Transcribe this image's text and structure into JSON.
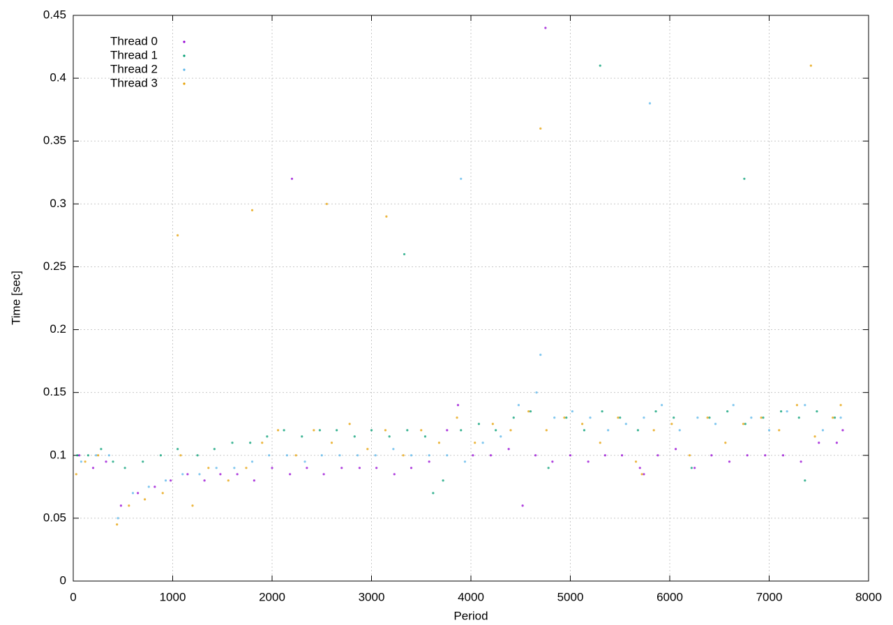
{
  "chart_data": {
    "type": "scatter",
    "x_label": "Period",
    "y_label": "Time [sec]",
    "xlim": [
      0,
      8000
    ],
    "ylim": [
      0,
      0.45
    ],
    "xticks": [
      0,
      1000,
      2000,
      3000,
      4000,
      5000,
      6000,
      7000,
      8000
    ],
    "yticks": [
      0,
      0.05,
      0.1,
      0.15,
      0.2,
      0.25,
      0.3,
      0.35,
      0.4,
      0.45
    ],
    "grid": true,
    "legend": "top-left",
    "series": [
      {
        "name": "Thread 0",
        "color": "#9400d3",
        "x": [
          60,
          200,
          330,
          480,
          650,
          820,
          980,
          1150,
          1320,
          1480,
          1650,
          1820,
          2000,
          2180,
          2350,
          2520,
          2700,
          2880,
          3050,
          3230,
          3400,
          3580,
          3760,
          3870,
          4020,
          4200,
          4380,
          4520,
          4650,
          4820,
          5000,
          5180,
          5350,
          5520,
          5700,
          5740,
          5880,
          6060,
          6250,
          6420,
          6600,
          6780,
          6960,
          7140,
          7320,
          7500,
          7680,
          7740,
          2200,
          4750
        ],
        "values": [
          0.1,
          0.09,
          0.095,
          0.06,
          0.07,
          0.075,
          0.08,
          0.085,
          0.08,
          0.085,
          0.085,
          0.08,
          0.09,
          0.085,
          0.09,
          0.085,
          0.09,
          0.09,
          0.09,
          0.085,
          0.09,
          0.095,
          0.12,
          0.14,
          0.1,
          0.1,
          0.105,
          0.06,
          0.1,
          0.095,
          0.1,
          0.095,
          0.1,
          0.1,
          0.09,
          0.085,
          0.1,
          0.105,
          0.09,
          0.1,
          0.095,
          0.1,
          0.1,
          0.1,
          0.095,
          0.11,
          0.11,
          0.12,
          0.32,
          0.44
        ]
      },
      {
        "name": "Thread 1",
        "color": "#009e73",
        "x": [
          40,
          150,
          280,
          400,
          520,
          700,
          880,
          1050,
          1250,
          1420,
          1600,
          1780,
          1950,
          2120,
          2300,
          2480,
          2650,
          2830,
          3000,
          3180,
          3360,
          3540,
          3620,
          3720,
          3900,
          4080,
          4250,
          4430,
          4600,
          4780,
          4960,
          5140,
          5320,
          5500,
          5680,
          5860,
          6040,
          6220,
          6400,
          6580,
          6760,
          6940,
          7120,
          7300,
          7360,
          7480,
          7660,
          3330,
          5300,
          6750
        ],
        "values": [
          0.1,
          0.1,
          0.105,
          0.095,
          0.09,
          0.095,
          0.1,
          0.105,
          0.1,
          0.105,
          0.11,
          0.11,
          0.115,
          0.12,
          0.115,
          0.12,
          0.12,
          0.115,
          0.12,
          0.115,
          0.12,
          0.115,
          0.07,
          0.08,
          0.12,
          0.125,
          0.12,
          0.13,
          0.135,
          0.09,
          0.13,
          0.12,
          0.135,
          0.13,
          0.12,
          0.135,
          0.13,
          0.09,
          0.13,
          0.135,
          0.125,
          0.13,
          0.135,
          0.13,
          0.08,
          0.135,
          0.13,
          0.26,
          0.41,
          0.32
        ]
      },
      {
        "name": "Thread 2",
        "color": "#56b4e9",
        "x": [
          80,
          230,
          360,
          450,
          600,
          760,
          930,
          1100,
          1270,
          1440,
          1620,
          1800,
          1970,
          2150,
          2330,
          2500,
          2680,
          2860,
          3040,
          3220,
          3400,
          3580,
          3760,
          3940,
          4120,
          4300,
          4480,
          4660,
          4840,
          5020,
          5200,
          5380,
          5560,
          5740,
          5920,
          6100,
          6280,
          6460,
          6640,
          6820,
          7000,
          7180,
          7360,
          7540,
          7720,
          4700,
          3900,
          5800
        ],
        "values": [
          0.095,
          0.1,
          0.1,
          0.05,
          0.07,
          0.075,
          0.08,
          0.085,
          0.085,
          0.09,
          0.09,
          0.095,
          0.1,
          0.1,
          0.095,
          0.1,
          0.1,
          0.1,
          0.1,
          0.105,
          0.1,
          0.1,
          0.1,
          0.095,
          0.11,
          0.115,
          0.14,
          0.15,
          0.13,
          0.135,
          0.13,
          0.12,
          0.125,
          0.13,
          0.14,
          0.12,
          0.13,
          0.125,
          0.14,
          0.13,
          0.12,
          0.135,
          0.14,
          0.12,
          0.13,
          0.18,
          0.32,
          0.38
        ]
      },
      {
        "name": "Thread 3",
        "color": "#e69f00",
        "x": [
          30,
          120,
          250,
          440,
          560,
          720,
          900,
          1080,
          1200,
          1360,
          1560,
          1740,
          1900,
          2060,
          2240,
          2420,
          2600,
          2780,
          2960,
          3140,
          3320,
          3500,
          3680,
          3860,
          4040,
          4220,
          4400,
          4580,
          4760,
          4940,
          5120,
          5300,
          5480,
          5660,
          5720,
          5840,
          6020,
          6200,
          6380,
          6560,
          6740,
          6920,
          7100,
          7280,
          7460,
          7640,
          7720,
          1050,
          1800,
          2550,
          3150,
          4700,
          7420
        ],
        "values": [
          0.085,
          0.095,
          0.1,
          0.045,
          0.06,
          0.065,
          0.07,
          0.1,
          0.06,
          0.09,
          0.08,
          0.09,
          0.11,
          0.12,
          0.1,
          0.12,
          0.11,
          0.125,
          0.105,
          0.12,
          0.1,
          0.12,
          0.11,
          0.13,
          0.11,
          0.125,
          0.12,
          0.135,
          0.12,
          0.13,
          0.125,
          0.11,
          0.13,
          0.095,
          0.085,
          0.12,
          0.125,
          0.1,
          0.13,
          0.11,
          0.125,
          0.13,
          0.12,
          0.14,
          0.115,
          0.13,
          0.14,
          0.275,
          0.295,
          0.3,
          0.29,
          0.36,
          0.41
        ]
      }
    ]
  }
}
